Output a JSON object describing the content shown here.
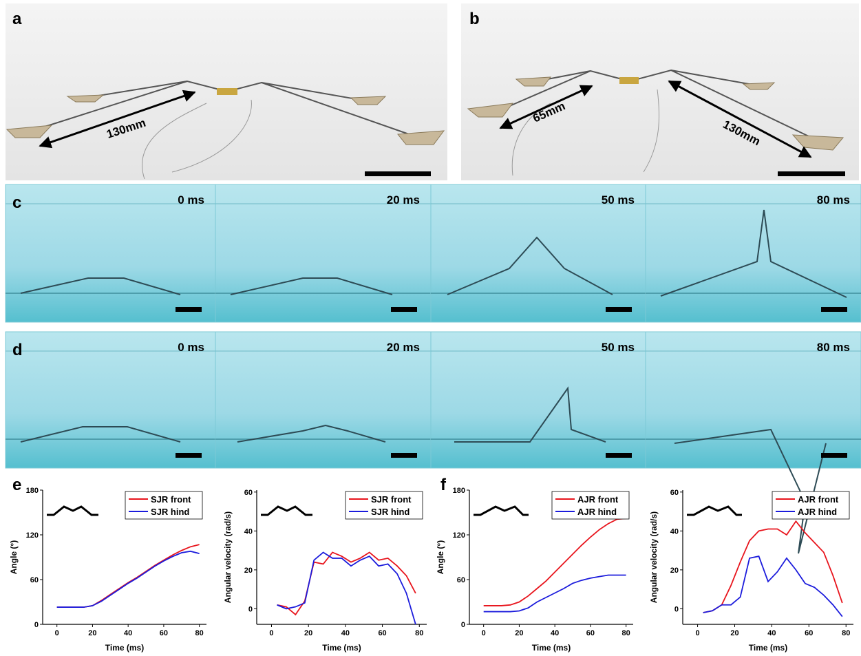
{
  "photos": [
    {
      "label": "a",
      "annotations": [
        "130mm"
      ]
    },
    {
      "label": "b",
      "annotations": [
        "65mm",
        "130mm"
      ]
    }
  ],
  "sequences": [
    {
      "label": "c",
      "times": [
        "0 ms",
        "20 ms",
        "50 ms",
        "80 ms"
      ]
    },
    {
      "label": "d",
      "times": [
        "0 ms",
        "20 ms",
        "50 ms",
        "80 ms"
      ]
    }
  ],
  "chart_panels": [
    "e",
    "f"
  ],
  "chart_data": [
    {
      "type": "line",
      "xlabel": "Time (ms)",
      "ylabel": "Angle (°)",
      "x": [
        0,
        5,
        10,
        15,
        20,
        25,
        30,
        35,
        40,
        45,
        50,
        55,
        60,
        65,
        70,
        75,
        80
      ],
      "series": [
        {
          "name": "SJR front",
          "color": "#e8141c",
          "values": [
            23,
            23,
            23,
            23,
            25,
            32,
            40,
            48,
            56,
            63,
            71,
            79,
            86,
            93,
            99,
            104,
            107
          ]
        },
        {
          "name": "SJR hind",
          "color": "#1b1bdc",
          "values": [
            23,
            23,
            23,
            23,
            25,
            31,
            39,
            47,
            55,
            62,
            70,
            78,
            85,
            91,
            96,
            98,
            95
          ]
        }
      ],
      "xlim": [
        -8,
        84
      ],
      "xticks": [
        0,
        20,
        40,
        60,
        80
      ],
      "ylim": [
        0,
        180
      ],
      "yticks": [
        0,
        60,
        120,
        180
      ],
      "legend": "top-right"
    },
    {
      "type": "line",
      "xlabel": "Time (ms)",
      "ylabel": "Angular velocity (rad/s)",
      "x": [
        3,
        8,
        13,
        18,
        23,
        28,
        33,
        38,
        43,
        48,
        53,
        58,
        63,
        68,
        73,
        78
      ],
      "series": [
        {
          "name": "SJR front",
          "color": "#e8141c",
          "values": [
            2,
            1,
            -3,
            4,
            24,
            23,
            29,
            27,
            24,
            26,
            29,
            25,
            26,
            22,
            17,
            8
          ]
        },
        {
          "name": "SJR hind",
          "color": "#1b1bdc",
          "values": [
            2,
            0,
            1,
            3,
            25,
            29,
            26,
            26,
            22,
            25,
            27,
            22,
            23,
            18,
            8,
            -8
          ]
        }
      ],
      "xlim": [
        -8,
        84
      ],
      "xticks": [
        0,
        20,
        40,
        60,
        80
      ],
      "ylim": [
        -8,
        61
      ],
      "yticks": [
        0,
        20,
        40,
        60
      ],
      "legend": "top-right"
    },
    {
      "type": "line",
      "xlabel": "Time (ms)",
      "ylabel": "Angle (°)",
      "x": [
        0,
        5,
        10,
        15,
        20,
        25,
        30,
        35,
        40,
        45,
        50,
        55,
        60,
        65,
        70,
        75,
        80
      ],
      "series": [
        {
          "name": "AJR front",
          "color": "#e8141c",
          "values": [
            25,
            25,
            25,
            26,
            30,
            38,
            48,
            58,
            70,
            82,
            94,
            106,
            117,
            127,
            135,
            141,
            142
          ]
        },
        {
          "name": "AJR hind",
          "color": "#1b1bdc",
          "values": [
            17,
            17,
            17,
            17,
            18,
            22,
            30,
            36,
            42,
            48,
            55,
            59,
            62,
            64,
            66,
            66,
            66
          ]
        }
      ],
      "xlim": [
        -8,
        84
      ],
      "xticks": [
        0,
        20,
        40,
        60,
        80
      ],
      "ylim": [
        0,
        180
      ],
      "yticks": [
        0,
        60,
        120,
        180
      ],
      "legend": "top-right"
    },
    {
      "type": "line",
      "xlabel": "Time (ms)",
      "ylabel": "Angular velocity (rad/s)",
      "x": [
        3,
        8,
        13,
        18,
        23,
        28,
        33,
        38,
        43,
        48,
        53,
        58,
        63,
        68,
        73,
        78
      ],
      "series": [
        {
          "name": "AJR front",
          "color": "#e8141c",
          "values": [
            -2,
            -1,
            2,
            12,
            24,
            35,
            40,
            41,
            41,
            38,
            45,
            39,
            34,
            29,
            17,
            3
          ]
        },
        {
          "name": "AJR hind",
          "color": "#1b1bdc",
          "values": [
            -2,
            -1,
            2,
            2,
            6,
            26,
            27,
            14,
            19,
            26,
            20,
            13,
            11,
            7,
            2,
            -4
          ]
        }
      ],
      "xlim": [
        -8,
        84
      ],
      "xticks": [
        0,
        20,
        40,
        60,
        80
      ],
      "ylim": [
        -8,
        61
      ],
      "yticks": [
        0,
        20,
        40,
        60
      ],
      "legend": "top-right"
    }
  ]
}
